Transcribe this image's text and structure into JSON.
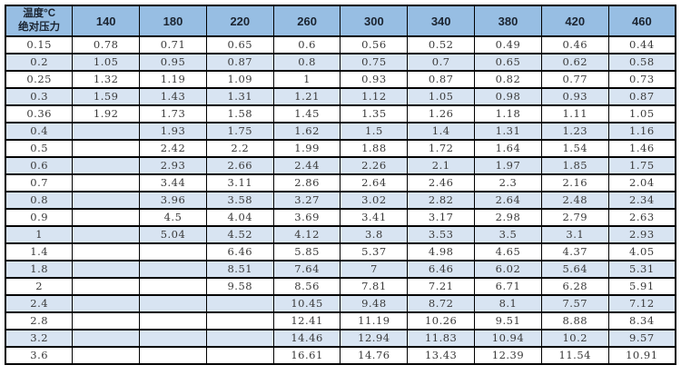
{
  "chart_data": {
    "type": "table",
    "corner_header": [
      "温度°C",
      "绝对压力"
    ],
    "col_headers": [
      "140",
      "180",
      "220",
      "260",
      "300",
      "340",
      "380",
      "420",
      "460"
    ],
    "rows": [
      {
        "pressure": "0.15",
        "values": [
          "0.78",
          "0.71",
          "0.65",
          "0.6",
          "0.56",
          "0.52",
          "0.49",
          "0.46",
          "0.44"
        ]
      },
      {
        "pressure": "0.2",
        "values": [
          "1.05",
          "0.95",
          "0.87",
          "0.8",
          "0.75",
          "0.7",
          "0.65",
          "0.62",
          "0.58"
        ]
      },
      {
        "pressure": "0.25",
        "values": [
          "1.32",
          "1.19",
          "1.09",
          "1",
          "0.93",
          "0.87",
          "0.82",
          "0.77",
          "0.73"
        ]
      },
      {
        "pressure": "0.3",
        "values": [
          "1.59",
          "1.43",
          "1.31",
          "1.21",
          "1.12",
          "1.05",
          "0.98",
          "0.93",
          "0.87"
        ]
      },
      {
        "pressure": "0.36",
        "values": [
          "1.92",
          "1.73",
          "1.58",
          "1.45",
          "1.35",
          "1.26",
          "1.18",
          "1.11",
          "1.05"
        ]
      },
      {
        "pressure": "0.4",
        "values": [
          "",
          "1.93",
          "1.75",
          "1.62",
          "1.5",
          "1.4",
          "1.31",
          "1.23",
          "1.16"
        ]
      },
      {
        "pressure": "0.5",
        "values": [
          "",
          "2.42",
          "2.2",
          "1.99",
          "1.88",
          "1.72",
          "1.64",
          "1.54",
          "1.46"
        ]
      },
      {
        "pressure": "0.6",
        "values": [
          "",
          "2.93",
          "2.66",
          "2.44",
          "2.26",
          "2.1",
          "1.97",
          "1.85",
          "1.75"
        ]
      },
      {
        "pressure": "0.7",
        "values": [
          "",
          "3.44",
          "3.11",
          "2.86",
          "2.64",
          "2.46",
          "2.3",
          "2.16",
          "2.04"
        ]
      },
      {
        "pressure": "0.8",
        "values": [
          "",
          "3.96",
          "3.58",
          "3.27",
          "3.02",
          "2.82",
          "2.64",
          "2.48",
          "2.34"
        ]
      },
      {
        "pressure": "0.9",
        "values": [
          "",
          "4.5",
          "4.04",
          "3.69",
          "3.41",
          "3.17",
          "2.98",
          "2.79",
          "2.63"
        ]
      },
      {
        "pressure": "1",
        "values": [
          "",
          "5.04",
          "4.52",
          "4.12",
          "3.8",
          "3.53",
          "3.5",
          "3.1",
          "2.93"
        ]
      },
      {
        "pressure": "1.4",
        "values": [
          "",
          "",
          "6.46",
          "5.85",
          "5.37",
          "4.98",
          "4.65",
          "4.37",
          "4.05"
        ]
      },
      {
        "pressure": "1.8",
        "values": [
          "",
          "",
          "8.51",
          "7.64",
          "7",
          "6.46",
          "6.02",
          "5.64",
          "5.31"
        ]
      },
      {
        "pressure": "2",
        "values": [
          "",
          "",
          "9.58",
          "8.56",
          "7.81",
          "7.21",
          "6.71",
          "6.28",
          "5.91"
        ]
      },
      {
        "pressure": "2.4",
        "values": [
          "",
          "",
          "",
          "10.45",
          "9.48",
          "8.72",
          "8.1",
          "7.57",
          "7.12"
        ]
      },
      {
        "pressure": "2.8",
        "values": [
          "",
          "",
          "",
          "12.41",
          "11.19",
          "10.26",
          "9.51",
          "8.88",
          "8.34"
        ]
      },
      {
        "pressure": "3.2",
        "values": [
          "",
          "",
          "",
          "14.46",
          "12.94",
          "11.83",
          "10.94",
          "10.2",
          "9.57"
        ]
      },
      {
        "pressure": "3.6",
        "values": [
          "",
          "",
          "",
          "16.61",
          "14.76",
          "13.43",
          "12.39",
          "11.54",
          "10.91"
        ]
      }
    ]
  },
  "colors": {
    "header_bg": "#97BEE3",
    "alt_row_bg": "#D8E4F2",
    "row_bg": "#FFFFFF",
    "border": "#000000",
    "header_text": "#1B2430",
    "cell_text": "#3A3A3A"
  }
}
